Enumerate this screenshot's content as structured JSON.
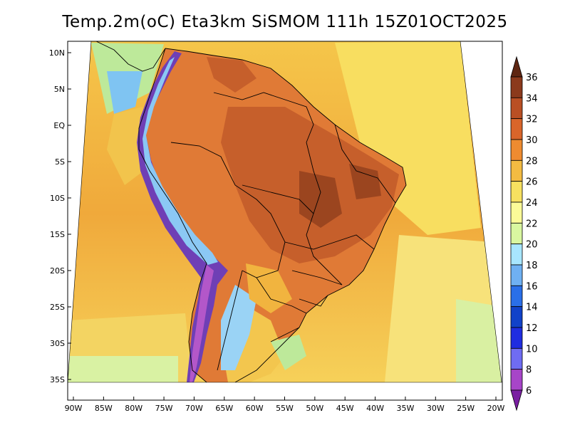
{
  "title": "Temp.2m(oC) Eta3km SiSMOM 111h 15Z01OCT2025",
  "map": {
    "lat_labels": [
      "10N",
      "5N",
      "EQ",
      "5S",
      "10S",
      "15S",
      "20S",
      "25S",
      "30S",
      "35S"
    ],
    "lon_labels": [
      "90W",
      "85W",
      "80W",
      "75W",
      "70W",
      "65W",
      "60W",
      "55W",
      "50W",
      "45W",
      "40W",
      "35W",
      "30W",
      "25W",
      "20W"
    ]
  },
  "colorbar": {
    "levels": [
      "6",
      "8",
      "10",
      "12",
      "14",
      "16",
      "18",
      "20",
      "22",
      "24",
      "26",
      "28",
      "30",
      "32",
      "34",
      "36"
    ],
    "colors": [
      "#7a1fa2",
      "#a745c8",
      "#6f6cf2",
      "#1f2de0",
      "#1142c9",
      "#2a6fe8",
      "#6fb0f2",
      "#a8e6ff",
      "#d9f7a0",
      "#fbfa98",
      "#f7e060",
      "#f3bb42",
      "#ee8b30",
      "#d9652a",
      "#b94f24",
      "#8b3a1c",
      "#5e2612"
    ]
  },
  "colors": {
    "ocean_yellow": "#f7db55",
    "ocean_orange": "#f1ab3a",
    "land_orange": "#e5813a",
    "land_brown": "#c6612b",
    "andes_purple": "#6d3cb0",
    "andes_blue": "#7cc6f4"
  }
}
